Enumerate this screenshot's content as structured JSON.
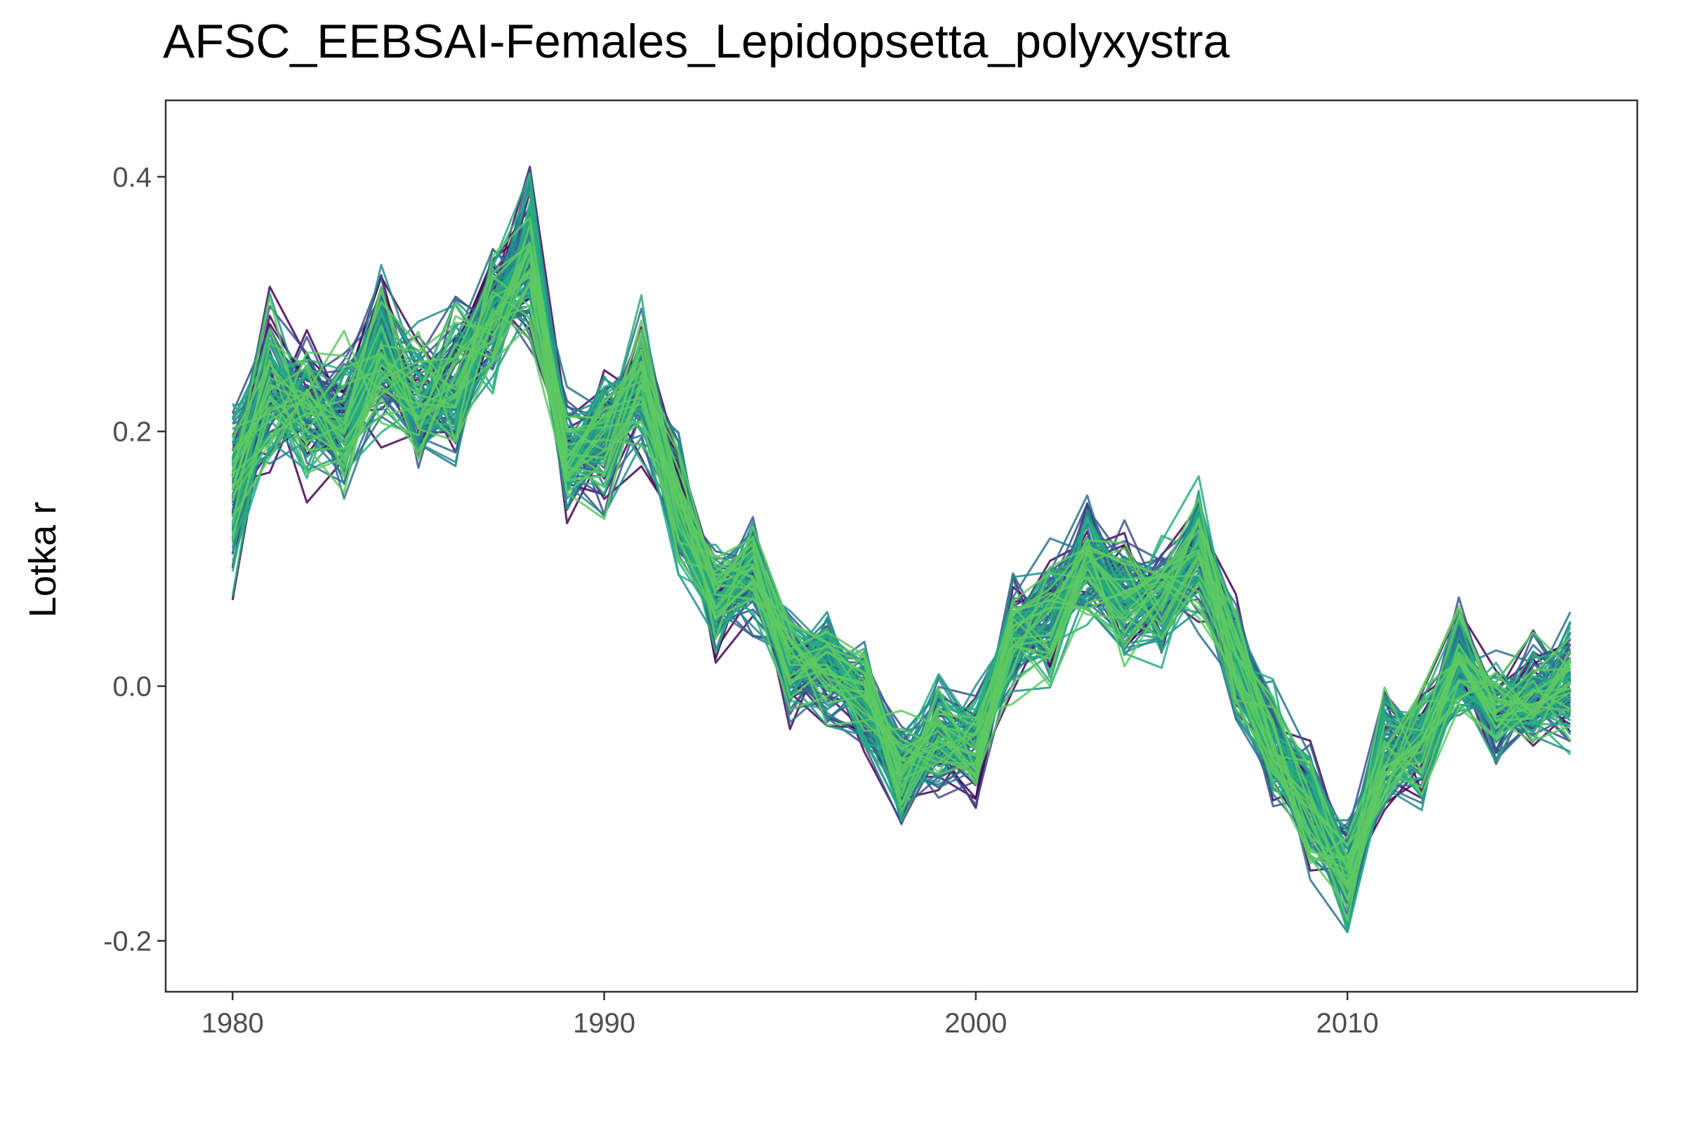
{
  "chart_data": {
    "type": "line",
    "title": "AFSC_EEBSAI-Females_Lepidopsetta_polyxystra",
    "xlabel": "",
    "ylabel": "Lotka r",
    "xlim": [
      1978.2,
      2017.8
    ],
    "ylim": [
      -0.24,
      0.46
    ],
    "x_ticks": [
      1980,
      1990,
      2000,
      2010
    ],
    "x_tick_labels": [
      "1980",
      "1990",
      "2000",
      "2010"
    ],
    "y_ticks": [
      -0.2,
      0.0,
      0.2,
      0.4
    ],
    "y_tick_labels": [
      "-0.2",
      "0.0",
      "0.2",
      "0.4"
    ],
    "grid": false,
    "legend": "none",
    "n_simulated_series": 110,
    "color_palette": [
      "#440154",
      "#3b528b",
      "#2c728e",
      "#21908c",
      "#27ad81",
      "#5ec962"
    ],
    "x": [
      1980,
      1981,
      1982,
      1983,
      1984,
      1985,
      1986,
      1987,
      1988,
      1989,
      1990,
      1991,
      1992,
      1993,
      1994,
      1995,
      1996,
      1997,
      1998,
      1999,
      2000,
      2001,
      2002,
      2003,
      2004,
      2005,
      2006,
      2007,
      2008,
      2009,
      2010,
      2011,
      2012,
      2013,
      2014,
      2015,
      2016
    ],
    "series": [
      {
        "summary": "central",
        "values": [
          0.16,
          0.24,
          0.22,
          0.2,
          0.26,
          0.22,
          0.24,
          0.29,
          0.34,
          0.18,
          0.2,
          0.24,
          0.14,
          0.07,
          0.09,
          0.02,
          0.01,
          -0.01,
          -0.07,
          -0.04,
          -0.05,
          0.04,
          0.06,
          0.1,
          0.07,
          0.07,
          0.1,
          0.02,
          -0.04,
          -0.09,
          -0.15,
          -0.05,
          -0.04,
          0.02,
          -0.02,
          -0.01,
          0.0
        ]
      },
      {
        "summary": "lower envelope",
        "values": [
          0.05,
          0.15,
          0.14,
          0.12,
          0.17,
          0.16,
          0.16,
          0.21,
          0.25,
          0.12,
          0.11,
          0.15,
          0.07,
          0.01,
          0.03,
          -0.05,
          -0.06,
          -0.08,
          -0.13,
          -0.1,
          -0.11,
          -0.03,
          -0.02,
          0.03,
          0.0,
          0.0,
          0.03,
          -0.05,
          -0.11,
          -0.17,
          -0.21,
          -0.12,
          -0.11,
          -0.04,
          -0.08,
          -0.07,
          -0.07
        ]
      },
      {
        "summary": "upper envelope",
        "values": [
          0.24,
          0.33,
          0.3,
          0.29,
          0.35,
          0.3,
          0.33,
          0.36,
          0.43,
          0.25,
          0.26,
          0.33,
          0.21,
          0.13,
          0.15,
          0.08,
          0.07,
          0.06,
          -0.01,
          0.02,
          0.01,
          0.1,
          0.13,
          0.16,
          0.14,
          0.14,
          0.18,
          0.09,
          0.03,
          -0.03,
          -0.08,
          0.02,
          0.02,
          0.09,
          0.04,
          0.05,
          0.07
        ]
      }
    ]
  }
}
